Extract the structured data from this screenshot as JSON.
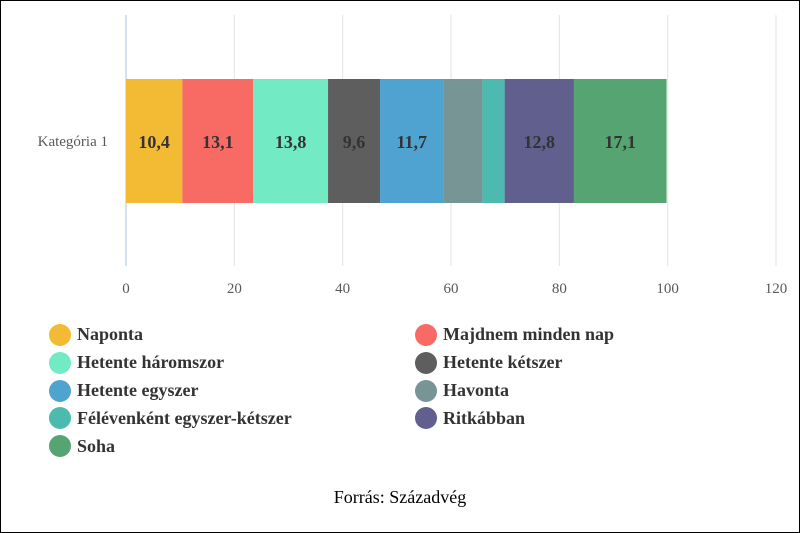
{
  "chart_data": {
    "type": "bar",
    "orientation": "horizontal",
    "stacked": true,
    "categories": [
      "Kategória 1"
    ],
    "series": [
      {
        "name": "Naponta",
        "values": [
          10.4
        ],
        "label": "10,4",
        "color": "#f2bb33"
      },
      {
        "name": "Majdnem minden nap",
        "values": [
          13.1
        ],
        "label": "13,1",
        "color": "#f86a64"
      },
      {
        "name": "Hetente háromszor",
        "values": [
          13.8
        ],
        "label": "13,8",
        "color": "#72eac3"
      },
      {
        "name": "Hetente kétszer",
        "values": [
          9.6
        ],
        "label": "9,6",
        "color": "#5e5e5e"
      },
      {
        "name": "Hetente egyszer",
        "values": [
          11.7
        ],
        "label": "11,7",
        "color": "#4fa3d0"
      },
      {
        "name": "Havonta",
        "values": [
          7.2
        ],
        "label": "",
        "color": "#779595"
      },
      {
        "name": "Félévenként egyszer-kétszer",
        "values": [
          4.1
        ],
        "label": "",
        "color": "#4cbaaf"
      },
      {
        "name": "Ritkábban",
        "values": [
          12.8
        ],
        "label": "12,8",
        "color": "#615f8e"
      },
      {
        "name": "Soha",
        "values": [
          17.1
        ],
        "label": "17,1",
        "color": "#55a472"
      }
    ],
    "xlim": [
      0,
      120
    ],
    "xticks": [
      0,
      20,
      40,
      60,
      80,
      100,
      120
    ],
    "grid": true,
    "legend_position": "bottom"
  },
  "footer": {
    "source": "Forrás: Századvég"
  }
}
